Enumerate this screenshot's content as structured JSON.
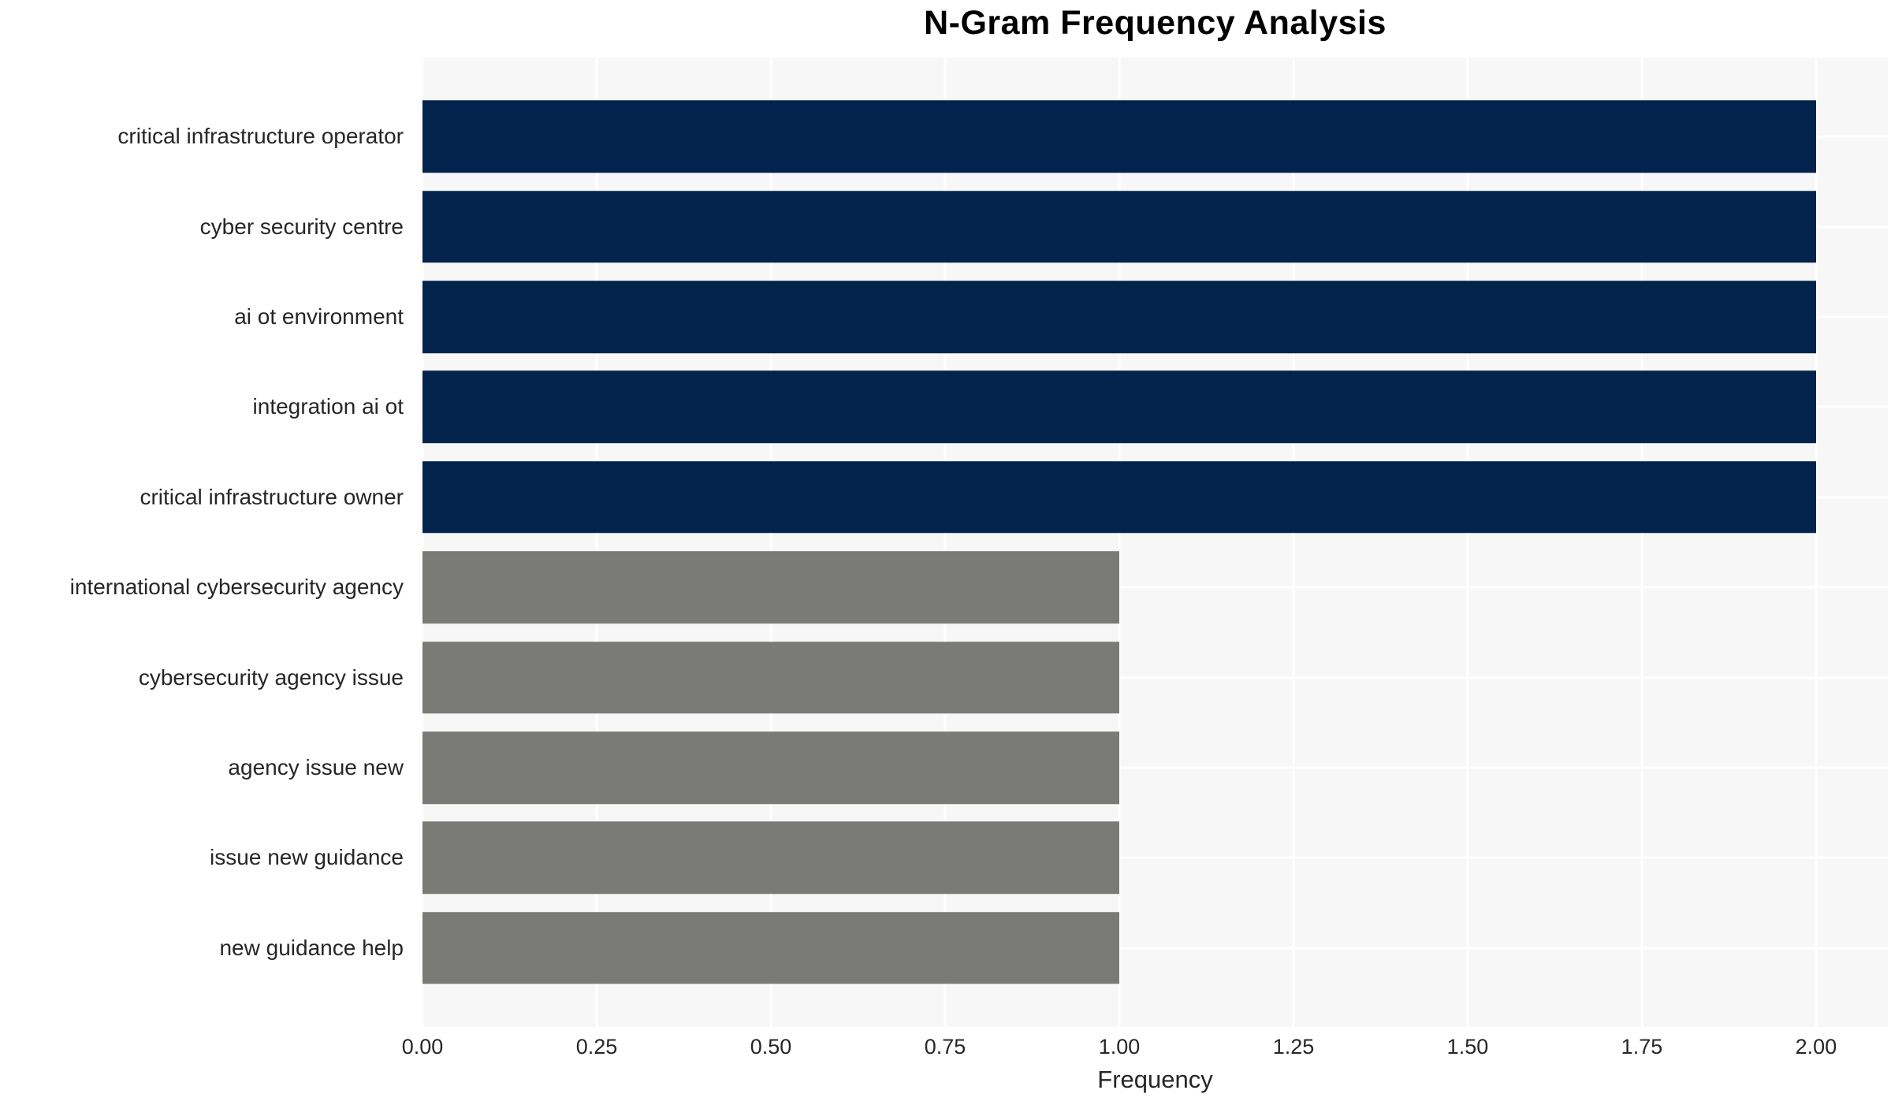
{
  "style": {
    "page_background": "#ffffff",
    "plot_background": "#f7f7f7",
    "gridline_color": "#ffffff",
    "text_color": "#262626",
    "title_color": "#000000",
    "navy_bar_color": "#02234c",
    "gray_bar_color": "#7a7a76"
  },
  "chart_data": {
    "type": "bar",
    "orientation": "horizontal",
    "title": "N-Gram Frequency Analysis",
    "xlabel": "Frequency",
    "ylabel": "",
    "legend": "none",
    "grid": true,
    "categories": [
      "critical infrastructure operator",
      "cyber security centre",
      "ai ot environment",
      "integration ai ot",
      "critical infrastructure owner",
      "international cybersecurity agency",
      "cybersecurity agency issue",
      "agency issue new",
      "issue new guidance",
      "new guidance help"
    ],
    "values": [
      2,
      2,
      2,
      2,
      2,
      1,
      1,
      1,
      1,
      1
    ],
    "colors": [
      "#02234c",
      "#02234c",
      "#02234c",
      "#02234c",
      "#02234c",
      "#7a7a76",
      "#7a7a76",
      "#7a7a76",
      "#7a7a76",
      "#7a7a76"
    ],
    "xlim": [
      0,
      2.103
    ],
    "xticks": [
      0,
      0.25,
      0.5,
      0.75,
      1.0,
      1.25,
      1.5,
      1.75,
      2.0
    ],
    "xtick_labels": [
      "0.00",
      "0.25",
      "0.50",
      "0.75",
      "1.00",
      "1.25",
      "1.50",
      "1.75",
      "2.00"
    ]
  }
}
